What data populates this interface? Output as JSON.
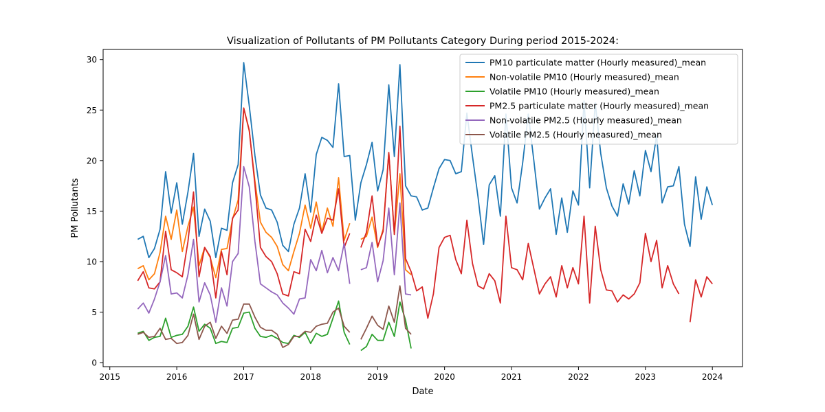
{
  "chart_data": {
    "type": "line",
    "title": "Visualization of Pollutants of PM Pollutants Category During period 2015-2024:",
    "xlabel": "Date",
    "ylabel": "PM Pollutants",
    "xlim": [
      2014.9,
      2024.45
    ],
    "ylim": [
      -0.4,
      31.0
    ],
    "x_ticks": [
      2015,
      2016,
      2017,
      2018,
      2019,
      2020,
      2021,
      2022,
      2023,
      2024
    ],
    "x_tick_labels": [
      "2015",
      "2016",
      "2017",
      "2018",
      "2019",
      "2020",
      "2021",
      "2022",
      "2023",
      "2024"
    ],
    "y_ticks": [
      0,
      5,
      10,
      15,
      20,
      25,
      30
    ],
    "y_tick_labels": [
      "0",
      "5",
      "10",
      "15",
      "20",
      "25",
      "30"
    ],
    "grid": false,
    "legend_position": "top-right",
    "series": [
      {
        "name": "PM10 particulate matter (Hourly measured)_mean",
        "color": "#1f77b4",
        "x": [
          2015.417,
          2015.5,
          2015.583,
          2015.667,
          2015.75,
          2015.833,
          2015.917,
          2016.0,
          2016.083,
          2016.167,
          2016.25,
          2016.333,
          2016.417,
          2016.5,
          2016.583,
          2016.667,
          2016.75,
          2016.833,
          2016.917,
          2017.0,
          2017.083,
          2017.167,
          2017.25,
          2017.333,
          2017.417,
          2017.5,
          2017.583,
          2017.667,
          2017.75,
          2017.833,
          2017.917,
          2018.0,
          2018.083,
          2018.167,
          2018.25,
          2018.333,
          2018.417,
          2018.5,
          2018.583,
          2018.667,
          2018.75,
          2018.833,
          2018.917,
          2019.0,
          2019.083,
          2019.167,
          2019.25,
          2019.333,
          2019.417,
          2019.5,
          2019.583,
          2019.667,
          2019.75,
          2019.833,
          2019.917,
          2020.0,
          2020.083,
          2020.167,
          2020.25,
          2020.333,
          2020.417,
          2020.5,
          2020.583,
          2020.667,
          2020.75,
          2020.833,
          2020.917,
          2021.0,
          2021.083,
          2021.167,
          2021.25,
          2021.333,
          2021.417,
          2021.5,
          2021.583,
          2021.667,
          2021.75,
          2021.833,
          2021.917,
          2022.0,
          2022.083,
          2022.167,
          2022.25,
          2022.333,
          2022.417,
          2022.5,
          2022.583,
          2022.667,
          2022.75,
          2022.833,
          2022.917,
          2023.0,
          2023.083,
          2023.167,
          2023.25,
          2023.333,
          2023.417,
          2023.5,
          2023.583,
          2023.667,
          2023.75,
          2023.833,
          2023.917,
          2024.0
        ],
        "values": [
          12.2,
          12.5,
          10.4,
          11.3,
          13.2,
          18.9,
          14.8,
          17.8,
          13.7,
          16.9,
          20.7,
          12.5,
          15.2,
          14.0,
          10.4,
          13.3,
          13.1,
          17.8,
          19.6,
          29.7,
          25.4,
          20.5,
          16.6,
          15.3,
          15.1,
          13.9,
          11.6,
          11.0,
          13.7,
          15.3,
          18.7,
          14.9,
          20.6,
          22.3,
          22.0,
          21.3,
          27.6,
          20.4,
          20.5,
          14.1,
          17.8,
          19.6,
          21.8,
          17.0,
          19.1,
          27.5,
          20.4,
          29.5,
          17.5,
          16.5,
          16.4,
          15.1,
          15.3,
          17.3,
          19.2,
          20.1,
          20.0,
          18.7,
          18.9,
          24.7,
          20.4,
          16.4,
          11.7,
          17.6,
          18.5,
          14.5,
          24.6,
          17.3,
          15.8,
          19.8,
          24.6,
          20.0,
          15.2,
          16.3,
          17.2,
          12.7,
          16.3,
          12.9,
          17.0,
          15.6,
          25.9,
          17.3,
          25.7,
          20.7,
          17.3,
          15.5,
          14.5,
          17.7,
          15.7,
          19.0,
          16.5,
          21.0,
          18.9,
          22.5,
          15.8,
          17.4,
          17.5,
          19.4,
          13.7,
          11.5,
          18.4,
          14.2,
          17.4,
          15.6
        ]
      },
      {
        "name": "Non-volatile PM10 (Hourly measured)_mean",
        "color": "#ff7f0e",
        "x": [
          2015.417,
          2015.5,
          2015.583,
          2015.667,
          2015.75,
          2015.833,
          2015.917,
          2016.0,
          2016.083,
          2016.167,
          2016.25,
          2016.333,
          2016.417,
          2016.5,
          2016.583,
          2016.667,
          2016.75,
          2016.833,
          2016.917,
          2017.0,
          2017.083,
          2017.167,
          2017.25,
          2017.333,
          2017.417,
          2017.5,
          2017.583,
          2017.667,
          2017.75,
          2017.833,
          2017.917,
          2018.0,
          2018.083,
          2018.167,
          2018.25,
          2018.333,
          2018.417,
          2018.5,
          2018.583,
          null,
          2018.75,
          2018.833,
          2018.917,
          2019.0,
          2019.083,
          2019.167,
          2019.25,
          2019.333,
          2019.417,
          2019.5
        ],
        "values": [
          9.3,
          9.6,
          8.2,
          8.8,
          10.9,
          14.5,
          12.2,
          15.1,
          11.0,
          13.5,
          15.4,
          9.6,
          11.4,
          10.4,
          8.4,
          11.2,
          11.3,
          14.2,
          16.1,
          25.2,
          22.9,
          18.0,
          13.9,
          12.9,
          12.4,
          11.5,
          9.7,
          9.1,
          11.0,
          12.8,
          15.6,
          13.3,
          15.9,
          12.9,
          15.3,
          13.5,
          18.3,
          12.1,
          13.8,
          null,
          12.2,
          12.5,
          14.4,
          11.4,
          13.2,
          20.8,
          12.7,
          18.7,
          9.2,
          8.7
        ]
      },
      {
        "name": "Volatile PM10 (Hourly measured)_mean",
        "color": "#2ca02c",
        "x": [
          2015.417,
          2015.5,
          2015.583,
          2015.667,
          2015.75,
          2015.833,
          2015.917,
          2016.0,
          2016.083,
          2016.167,
          2016.25,
          2016.333,
          2016.417,
          2016.5,
          2016.583,
          2016.667,
          2016.75,
          2016.833,
          2016.917,
          2017.0,
          2017.083,
          2017.167,
          2017.25,
          2017.333,
          2017.417,
          2017.5,
          2017.583,
          2017.667,
          2017.75,
          2017.833,
          2017.917,
          2018.0,
          2018.083,
          2018.167,
          2018.25,
          2018.333,
          2018.417,
          2018.5,
          2018.583,
          null,
          2018.75,
          2018.833,
          2018.917,
          2019.0,
          2019.083,
          2019.167,
          2019.25,
          2019.333,
          2019.417,
          2019.5
        ],
        "values": [
          2.9,
          3.1,
          2.2,
          2.5,
          2.6,
          4.4,
          2.5,
          2.7,
          2.8,
          3.6,
          5.5,
          3.1,
          3.8,
          3.4,
          1.9,
          2.1,
          2.0,
          3.4,
          3.5,
          4.9,
          5.0,
          3.4,
          2.6,
          2.5,
          2.7,
          2.4,
          2.0,
          1.9,
          2.7,
          2.5,
          3.0,
          1.9,
          2.9,
          2.6,
          2.8,
          4.4,
          6.1,
          3.0,
          1.8,
          null,
          1.2,
          1.6,
          2.8,
          2.2,
          2.2,
          4.0,
          2.6,
          6.0,
          4.2,
          1.4
        ]
      },
      {
        "name": "PM2.5 particulate matter (Hourly measured)_mean",
        "color": "#d62728",
        "x": [
          2015.417,
          2015.5,
          2015.583,
          2015.667,
          2015.75,
          2015.833,
          2015.917,
          2016.0,
          2016.083,
          2016.167,
          2016.25,
          2016.333,
          2016.417,
          2016.5,
          2016.583,
          2016.667,
          2016.75,
          2016.833,
          2016.917,
          2017.0,
          2017.083,
          2017.167,
          2017.25,
          2017.333,
          2017.417,
          2017.5,
          2017.583,
          2017.667,
          2017.75,
          2017.833,
          2017.917,
          2018.0,
          2018.083,
          2018.167,
          2018.25,
          2018.333,
          2018.417,
          2018.5,
          2018.583,
          null,
          2018.75,
          2018.833,
          2018.917,
          2019.0,
          2019.083,
          2019.167,
          2019.25,
          2019.333,
          2019.417,
          2019.5,
          2019.583,
          2019.667,
          2019.75,
          2019.833,
          2019.917,
          2020.0,
          2020.083,
          2020.167,
          2020.25,
          2020.333,
          2020.417,
          2020.5,
          2020.583,
          2020.667,
          2020.75,
          2020.833,
          2020.917,
          2021.0,
          2021.083,
          2021.167,
          2021.25,
          2021.333,
          2021.417,
          2021.5,
          2021.583,
          2021.667,
          2021.75,
          2021.833,
          2021.917,
          2022.0,
          2022.083,
          2022.167,
          2022.25,
          2022.333,
          2022.417,
          2022.5,
          2022.583,
          2022.667,
          2022.75,
          2022.833,
          2022.917,
          2023.0,
          2023.083,
          2023.167,
          2023.25,
          2023.333,
          2023.417,
          2023.5,
          null,
          2023.667,
          2023.75,
          2023.833,
          2023.917,
          2024.0
        ],
        "values": [
          8.1,
          9.0,
          7.4,
          7.3,
          8.0,
          13.0,
          9.2,
          8.9,
          8.5,
          12.0,
          16.9,
          8.5,
          11.4,
          10.5,
          6.4,
          11.0,
          8.7,
          14.3,
          15.1,
          25.2,
          23.0,
          17.6,
          11.4,
          10.5,
          10.0,
          8.8,
          6.8,
          6.6,
          9.0,
          8.8,
          13.2,
          12.0,
          14.6,
          12.8,
          14.3,
          14.1,
          17.2,
          11.4,
          12.8,
          null,
          11.4,
          12.9,
          16.5,
          11.5,
          13.0,
          20.8,
          12.7,
          23.4,
          10.3,
          9.0,
          7.1,
          7.5,
          4.4,
          6.8,
          11.4,
          12.4,
          12.6,
          10.2,
          8.8,
          14.1,
          9.8,
          7.6,
          7.3,
          8.8,
          8.1,
          5.9,
          14.5,
          9.4,
          9.2,
          8.2,
          11.8,
          9.3,
          6.8,
          7.8,
          8.5,
          6.5,
          9.6,
          7.4,
          9.4,
          7.8,
          14.5,
          5.9,
          13.5,
          9.2,
          7.2,
          7.1,
          6.0,
          6.7,
          6.3,
          6.8,
          7.9,
          12.8,
          10.0,
          12.1,
          7.4,
          9.6,
          7.8,
          6.8,
          null,
          4.0,
          8.2,
          6.5,
          8.5,
          7.8
        ]
      },
      {
        "name": "Non-volatile PM2.5 (Hourly measured)_mean",
        "color": "#9467bd",
        "x": [
          2015.417,
          2015.5,
          2015.583,
          2015.667,
          2015.75,
          2015.833,
          2015.917,
          2016.0,
          2016.083,
          2016.167,
          2016.25,
          2016.333,
          2016.417,
          2016.5,
          2016.583,
          2016.667,
          2016.75,
          2016.833,
          2016.917,
          2017.0,
          2017.083,
          2017.167,
          2017.25,
          2017.333,
          2017.417,
          2017.5,
          2017.583,
          2017.667,
          2017.75,
          2017.833,
          2017.917,
          2018.0,
          2018.083,
          2018.167,
          2018.25,
          2018.333,
          2018.417,
          2018.5,
          2018.583,
          null,
          2018.75,
          2018.833,
          2018.917,
          2019.0,
          2019.083,
          2019.167,
          2019.25,
          2019.333,
          2019.417,
          2019.5
        ],
        "values": [
          5.3,
          5.9,
          4.9,
          6.3,
          8.0,
          10.6,
          6.8,
          6.9,
          6.4,
          8.7,
          12.2,
          6.0,
          7.9,
          6.7,
          4.0,
          7.4,
          5.6,
          10.0,
          10.8,
          19.4,
          17.4,
          12.0,
          7.8,
          7.4,
          7.0,
          6.7,
          5.9,
          5.4,
          4.8,
          6.3,
          6.4,
          10.2,
          9.1,
          11.1,
          8.9,
          10.4,
          9.1,
          11.8,
          7.8,
          null,
          9.2,
          9.4,
          11.9,
          8.0,
          10.1,
          15.3,
          8.7,
          15.8,
          6.8,
          6.7
        ]
      },
      {
        "name": "Volatile PM2.5 (Hourly measured)_mean",
        "color": "#8c564b",
        "x": [
          2015.417,
          2015.5,
          2015.583,
          2015.667,
          2015.75,
          2015.833,
          2015.917,
          2016.0,
          2016.083,
          2016.167,
          2016.25,
          2016.333,
          2016.417,
          2016.5,
          2016.583,
          2016.667,
          2016.75,
          2016.833,
          2016.917,
          2017.0,
          2017.083,
          2017.167,
          2017.25,
          2017.333,
          2017.417,
          2017.5,
          2017.583,
          2017.667,
          2017.75,
          2017.833,
          2017.917,
          2018.0,
          2018.083,
          2018.167,
          2018.25,
          2018.333,
          2018.417,
          2018.5,
          2018.583,
          null,
          2018.75,
          2018.833,
          2018.917,
          2019.0,
          2019.083,
          2019.167,
          2019.25,
          2019.333,
          2019.417,
          2019.5
        ],
        "values": [
          2.8,
          3.0,
          2.5,
          2.6,
          3.4,
          2.3,
          2.4,
          1.9,
          2.0,
          2.7,
          4.8,
          2.3,
          3.6,
          4.0,
          2.4,
          3.6,
          2.9,
          4.2,
          4.3,
          5.8,
          5.8,
          4.5,
          3.5,
          3.2,
          3.2,
          2.8,
          1.5,
          1.8,
          2.6,
          2.6,
          3.1,
          3.0,
          3.6,
          3.8,
          3.9,
          5.0,
          5.4,
          3.6,
          3.0,
          null,
          2.3,
          3.4,
          4.6,
          3.7,
          3.3,
          5.6,
          4.0,
          7.6,
          3.4,
          2.8
        ]
      }
    ]
  }
}
